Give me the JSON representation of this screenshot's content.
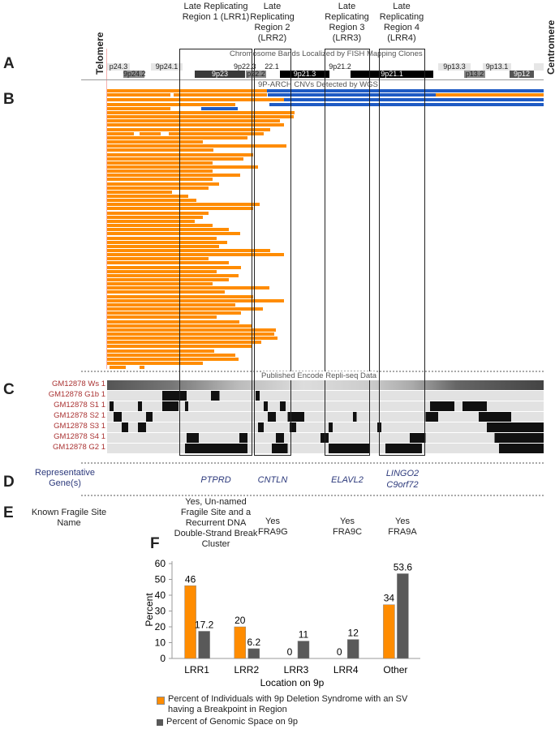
{
  "regions": [
    {
      "label": "Late Replicating Region 1 (LRR1)"
    },
    {
      "label": "Late Replicating Region 2 (LRR2)"
    },
    {
      "label": "Late Replicating Region 3 (LRR3)"
    },
    {
      "label": "Late Replicating Region 4 (LRR4)"
    }
  ],
  "panel_labels": {
    "a": "A",
    "b": "B",
    "c": "C",
    "d": "D",
    "e": "E",
    "f": "F"
  },
  "ends": {
    "left": "Telomere",
    "right": "Centromere"
  },
  "panelA": {
    "title": "Chromosome Bands Localized by FISH Mapping Clones",
    "bands_top": [
      "p24.3",
      "9p24.1",
      "9p22.3",
      "22.1",
      "9p21.2",
      "9p13.3",
      "9p13.1"
    ],
    "bands_bottom": [
      "9p24.2",
      "9p23",
      "p22.2",
      "9p21.3",
      "9p21.1",
      "p13.2",
      "9p12"
    ]
  },
  "panelB": {
    "title": "9P-ARCH CNVs Detected by WGS"
  },
  "panelC": {
    "title": "Published Encode Repli-seq Data",
    "tracks": [
      "GM12878 Ws 1",
      "GM12878 G1b 1",
      "GM12878 S1 1",
      "GM12878 S2 1",
      "GM12878 S3 1",
      "GM12878 S4 1",
      "GM12878 G2 1"
    ]
  },
  "panelD": {
    "label": "Representative Gene(s)",
    "genes": [
      "PTPRD",
      "CNTLN",
      "ELAVL2",
      "LINGO2 C9orf72"
    ]
  },
  "panelE": {
    "label": "Known Fragile Site Name",
    "sites": [
      "Yes, Un-named Fragile Site and a Recurrent DNA Double-Strand Break Cluster",
      "Yes FRA9G",
      "Yes FRA9C",
      "Yes FRA9A"
    ]
  },
  "colors": {
    "orange": "#ff8c00",
    "blue": "#1f5bc4",
    "dark": "#595959"
  },
  "chart_data": {
    "type": "bar",
    "categories": [
      "LRR1",
      "LRR2",
      "LRR3",
      "LRR4",
      "Other"
    ],
    "series": [
      {
        "name": "Percent of Individuals with 9p Deletion Syndrome with an SV having a Breakpoint in Region",
        "values": [
          46,
          20,
          0,
          0,
          34
        ],
        "labels": [
          "46",
          "20",
          "0",
          "0",
          "34"
        ]
      },
      {
        "name": "Percent of Genomic Space on 9p",
        "values": [
          17.2,
          6.2,
          11,
          12,
          53.6
        ],
        "labels": [
          "17.2",
          "6.2",
          "11",
          "12",
          "53.6"
        ]
      }
    ],
    "xlabel": "Location on 9p",
    "ylabel": "Percent",
    "ylim": [
      0,
      60
    ],
    "yticks": [
      "0",
      "10",
      "20",
      "30",
      "40",
      "50",
      "60"
    ],
    "legend": "bottom"
  }
}
